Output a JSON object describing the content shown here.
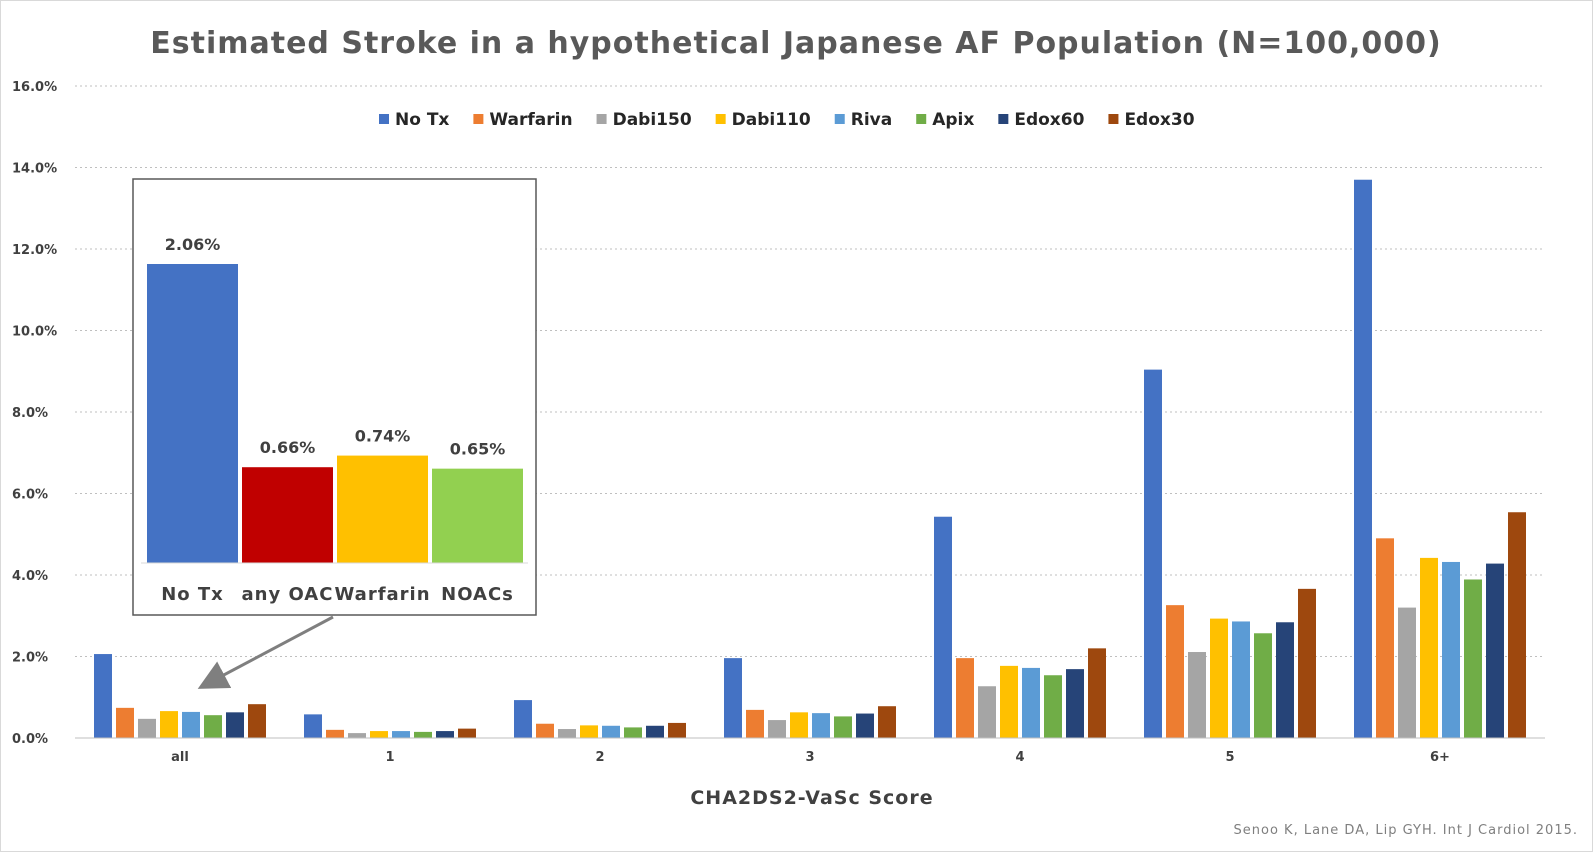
{
  "chart_data": {
    "type": "bar",
    "title": "Estimated Stroke in a hypothetical Japanese AF Population (N=100,000)",
    "xlabel": "CHA2DS2-VaSc Score",
    "ylabel": "",
    "ylim": [
      0,
      16
    ],
    "y_unit": "%",
    "yticks": [
      "0.0%",
      "2.0%",
      "4.0%",
      "6.0%",
      "8.0%",
      "10.0%",
      "12.0%",
      "14.0%",
      "16.0%"
    ],
    "grid": "horizontal dotted",
    "legend_position": "top",
    "categories": [
      "all",
      "1",
      "2",
      "3",
      "4",
      "5",
      "6+"
    ],
    "series": [
      {
        "name": "No Tx",
        "color": "#4472C4",
        "values": [
          2.06,
          0.58,
          0.93,
          1.96,
          5.43,
          9.04,
          13.7
        ]
      },
      {
        "name": "Warfarin",
        "color": "#ED7D31",
        "values": [
          0.74,
          0.2,
          0.35,
          0.69,
          1.96,
          3.26,
          4.9
        ]
      },
      {
        "name": "Dabi150",
        "color": "#A5A5A5",
        "values": [
          0.47,
          0.12,
          0.22,
          0.44,
          1.27,
          2.11,
          3.2
        ]
      },
      {
        "name": "Dabi110",
        "color": "#FFC000",
        "values": [
          0.66,
          0.17,
          0.31,
          0.63,
          1.77,
          2.93,
          4.42
        ]
      },
      {
        "name": "Riva",
        "color": "#5B9BD5",
        "values": [
          0.64,
          0.17,
          0.3,
          0.61,
          1.72,
          2.86,
          4.32
        ]
      },
      {
        "name": "Apix",
        "color": "#70AD47",
        "values": [
          0.56,
          0.15,
          0.26,
          0.53,
          1.54,
          2.57,
          3.89
        ]
      },
      {
        "name": "Edox60",
        "color": "#264478",
        "values": [
          0.63,
          0.17,
          0.3,
          0.6,
          1.69,
          2.84,
          4.28
        ]
      },
      {
        "name": "Edox30",
        "color": "#9E480E",
        "values": [
          0.83,
          0.23,
          0.37,
          0.78,
          2.2,
          3.66,
          5.54
        ]
      }
    ],
    "inset": {
      "type": "bar",
      "points_to_category": "all",
      "categories": [
        "No Tx",
        "any OAC",
        "Warfarin",
        "NOACs"
      ],
      "values": [
        2.06,
        0.66,
        0.74,
        0.65
      ],
      "value_labels": [
        "2.06%",
        "0.66%",
        "0.74%",
        "0.65%"
      ],
      "colors": [
        "#4472C4",
        "#C00000",
        "#FFC000",
        "#92D050"
      ]
    }
  },
  "citation": "Senoo K, Lane DA, Lip GYH. Int J Cardiol 2015."
}
